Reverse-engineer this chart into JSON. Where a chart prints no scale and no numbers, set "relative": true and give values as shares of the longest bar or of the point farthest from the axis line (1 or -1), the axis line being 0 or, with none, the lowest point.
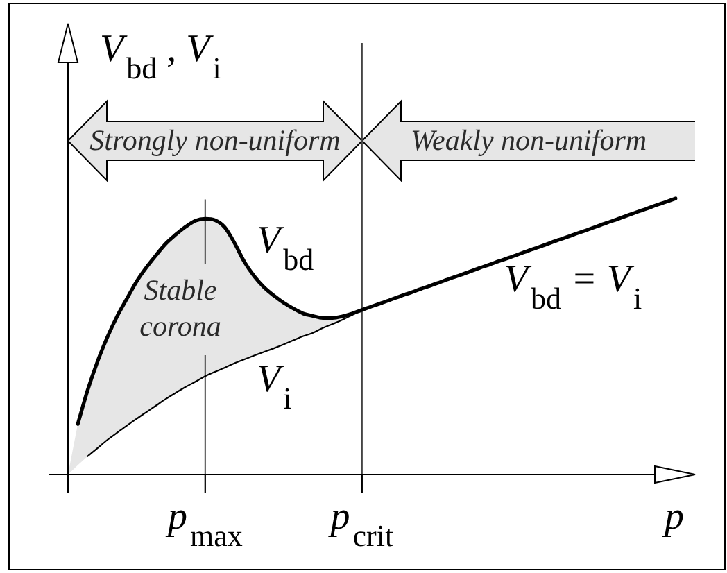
{
  "chart_data": {
    "type": "line",
    "relative": true,
    "xlabel": "p",
    "ylabel": "V$_{bd}$ , V$_{i}$",
    "tick_labels": "x",
    "marker": "none",
    "categories": [
      null,
      null,
      null,
      null,
      null,
      null,
      null,
      null,
      null,
      null,
      null,
      null,
      null,
      null,
      "p$_{max}$",
      null,
      null,
      null,
      null,
      null,
      null,
      null,
      null,
      null,
      null,
      null,
      null,
      null,
      null,
      null,
      "p$_{crit}$",
      null,
      null,
      null,
      null,
      null,
      null,
      null,
      null,
      null,
      null,
      null,
      null,
      null,
      null,
      null,
      null,
      null,
      null,
      null,
      null,
      null,
      null,
      null,
      null,
      null,
      null,
      null,
      null,
      null,
      null,
      null,
      null
    ],
    "series": [
      {
        "name": "V$_{bd}$",
        "color": "#000000",
        "values": [
          null,
          0.183,
          0.305,
          0.408,
          0.496,
          0.572,
          0.636,
          0.699,
          0.75,
          0.795,
          0.837,
          0.869,
          0.897,
          0.919,
          0.926,
          0.921,
          0.895,
          0.838,
          0.77,
          0.718,
          0.678,
          0.648,
          0.622,
          0.601,
          0.583,
          0.574,
          0.567,
          0.567,
          0.573,
          0.583,
          0.596,
          0.609,
          0.621,
          0.634,
          0.647,
          0.659,
          0.672,
          0.684,
          0.697,
          0.71,
          0.722,
          0.735,
          0.748,
          0.76,
          0.773,
          0.785,
          0.798,
          0.811,
          0.823,
          0.836,
          0.849,
          0.861,
          0.874,
          0.886,
          0.899,
          0.912,
          0.924,
          0.937,
          0.95,
          0.962,
          0.975,
          0.987,
          1
        ],
        "lower": [
          0,
          0.034,
          0.066,
          0.095,
          0.125,
          0.151,
          0.177,
          0.202,
          0.226,
          0.25,
          0.274,
          0.296,
          0.317,
          0.336,
          0.356,
          0.372,
          0.387,
          0.403,
          0.417,
          0.431,
          0.444,
          0.457,
          0.471,
          0.486,
          0.501,
          0.513,
          0.531,
          0.545,
          0.56,
          0.578,
          0.596,
          null,
          null,
          null,
          null,
          null,
          null,
          null,
          null,
          null,
          null,
          null,
          null,
          null,
          null,
          null,
          null,
          null,
          null,
          null,
          null,
          null,
          null,
          null,
          null,
          null,
          null,
          null,
          null,
          null,
          null,
          null,
          null
        ],
        "upper": [
          0,
          0.183,
          0.305,
          0.408,
          0.496,
          0.572,
          0.636,
          0.699,
          0.75,
          0.795,
          0.837,
          0.869,
          0.897,
          0.919,
          0.926,
          0.921,
          0.895,
          0.838,
          0.77,
          0.718,
          0.678,
          0.648,
          0.622,
          0.601,
          0.583,
          0.574,
          0.567,
          0.567,
          0.573,
          0.583,
          0.596,
          null,
          null,
          null,
          null,
          null,
          null,
          null,
          null,
          null,
          null,
          null,
          null,
          null,
          null,
          null,
          null,
          null,
          null,
          null,
          null,
          null,
          null,
          null,
          null,
          null,
          null,
          null,
          null,
          null,
          null,
          null,
          null
        ]
      },
      {
        "name": "V$_{i}$",
        "color": "#000000",
        "values": [
          null,
          null,
          0.066,
          0.095,
          0.125,
          0.151,
          0.177,
          0.202,
          0.226,
          0.25,
          0.274,
          0.296,
          0.317,
          0.336,
          0.356,
          0.372,
          0.387,
          0.403,
          0.417,
          0.431,
          0.444,
          0.457,
          0.471,
          0.486,
          0.501,
          0.513,
          0.531,
          0.545,
          0.56,
          0.578,
          0.596,
          null,
          null,
          null,
          null,
          null,
          null,
          null,
          null,
          null,
          null,
          null,
          null,
          null,
          null,
          null,
          null,
          null,
          null,
          null,
          null,
          null,
          null,
          null,
          null,
          null,
          null,
          null,
          null,
          null,
          null,
          null,
          null
        ]
      }
    ],
    "ref_lines": [
      {
        "axis": "x",
        "value": "p$_{max}$",
        "color": "#444444"
      },
      {
        "axis": "x",
        "value": "p$_{crit}$",
        "color": "#444444"
      }
    ],
    "annotations": [
      "Strongly non-uniform",
      "Weakly non-uniform",
      "Stable corona",
      "V$_{bd}$ = V$_{i}$"
    ]
  }
}
